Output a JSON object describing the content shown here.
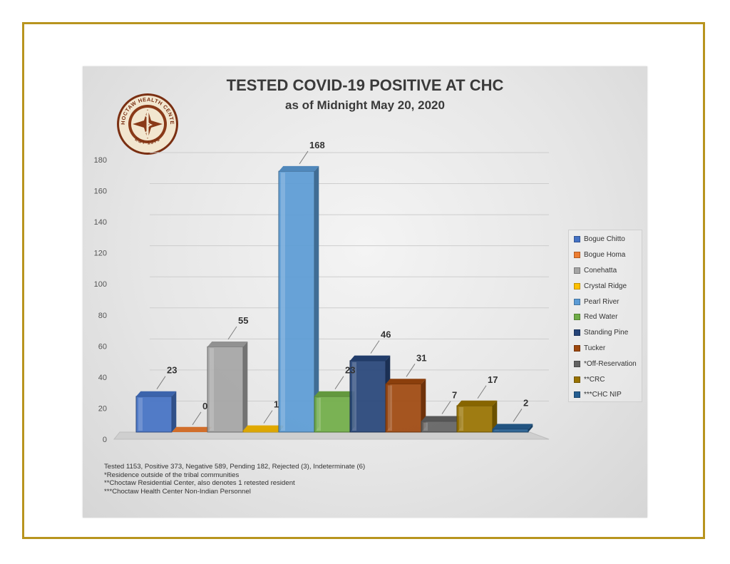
{
  "chart_data": {
    "type": "bar",
    "title": "TESTED COVID-19 POSITIVE AT CHC",
    "subtitle": "as of Midnight May 20, 2020",
    "categories": [
      "Bogue Chitto",
      "Bogue Homa",
      "Conehatta",
      "Crystal Ridge",
      "Pearl River",
      "Red Water",
      "Standing Pine",
      "Tucker",
      "*Off-Reservation",
      "**CRC",
      "***CHC NIP"
    ],
    "values": [
      23,
      0,
      55,
      1,
      168,
      23,
      46,
      31,
      7,
      17,
      2
    ],
    "colors": [
      "#4472c4",
      "#ed7d31",
      "#a5a5a5",
      "#ffc000",
      "#5b9bd5",
      "#70ad47",
      "#264478",
      "#9e480e",
      "#636363",
      "#997300",
      "#255e91"
    ],
    "ylim": [
      0,
      180
    ],
    "yticks": [
      0,
      20,
      40,
      60,
      80,
      100,
      120,
      140,
      160,
      180
    ],
    "xlabel": "",
    "ylabel": "",
    "grid": true,
    "legend": "right"
  },
  "logo": {
    "text_top": "CHOCTAW HEALTH CENTER",
    "text_bottom": "EST 1975"
  },
  "notes": [
    "Tested 1153, Positive 373, Negative 589, Pending 182, Rejected (3), Indeterminate (6)",
    "*Residence outside of the tribal communities",
    "**Choctaw Residential Center, also denotes 1 retested resident",
    "***Choctaw Health Center Non-Indian Personnel"
  ]
}
